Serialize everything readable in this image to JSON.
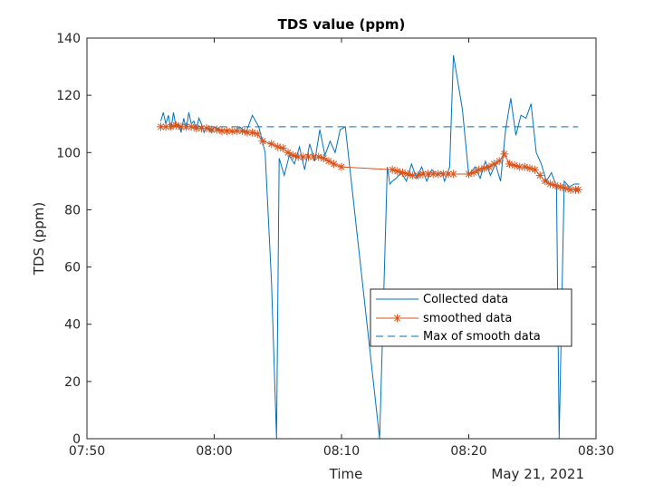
{
  "chart_data": {
    "type": "line",
    "title": "TDS value (ppm)",
    "xlabel": "Time",
    "ylabel": "TDS (ppm)",
    "date_label": "May 21, 2021",
    "xlim": [
      "07:50",
      "08:30"
    ],
    "ylim": [
      0,
      140
    ],
    "x_ticks": [
      "07:50",
      "08:00",
      "08:10",
      "08:20",
      "08:30"
    ],
    "y_ticks": [
      "0",
      "20",
      "40",
      "60",
      "80",
      "100",
      "120",
      "140"
    ],
    "grid": false,
    "legend_position": "right",
    "colors": {
      "collected": "#0072BD",
      "smoothed": "#D95319",
      "max": "#0072BD"
    },
    "series": [
      {
        "name": "Collected data",
        "style": "solid",
        "x": [
          "07:55:48",
          "07:56:00",
          "07:56:12",
          "07:56:24",
          "07:56:36",
          "07:56:48",
          "07:57:00",
          "07:57:12",
          "07:57:24",
          "07:57:36",
          "07:57:48",
          "07:58:00",
          "07:58:12",
          "07:58:24",
          "07:58:36",
          "07:58:48",
          "07:59:00",
          "07:59:12",
          "07:59:24",
          "07:59:36",
          "07:59:48",
          "08:00:00",
          "08:00:30",
          "08:01:00",
          "08:01:30",
          "08:02:00",
          "08:02:30",
          "08:03:00",
          "08:03:30",
          "08:04:00",
          "08:04:30",
          "08:04:54",
          "08:05:06",
          "08:05:30",
          "08:05:54",
          "08:06:18",
          "08:06:42",
          "08:07:06",
          "08:07:30",
          "08:07:54",
          "08:08:18",
          "08:08:42",
          "08:09:06",
          "08:09:30",
          "08:09:54",
          "08:10:18",
          "08:13:00",
          "08:13:36",
          "08:13:48",
          "08:14:00",
          "08:14:18",
          "08:14:42",
          "08:15:06",
          "08:15:30",
          "08:15:54",
          "08:16:18",
          "08:16:42",
          "08:17:06",
          "08:17:30",
          "08:17:54",
          "08:18:06",
          "08:18:30",
          "08:18:48",
          "08:19:30",
          "08:20:00",
          "08:20:30",
          "08:20:54",
          "08:21:18",
          "08:21:42",
          "08:22:06",
          "08:22:30",
          "08:22:54",
          "08:23:18",
          "08:23:42",
          "08:24:06",
          "08:24:30",
          "08:24:54",
          "08:25:18",
          "08:25:42",
          "08:26:06",
          "08:26:30",
          "08:26:54",
          "08:27:06",
          "08:27:18",
          "08:27:30",
          "08:27:54",
          "08:28:18",
          "08:28:42"
        ],
        "y": [
          111,
          114,
          110,
          113,
          108,
          114,
          109,
          110,
          107,
          112,
          108,
          114,
          110,
          111,
          108,
          112,
          110,
          107,
          109,
          108,
          107,
          109,
          108,
          108,
          107,
          109,
          107,
          113,
          109,
          100,
          55,
          0,
          98,
          92,
          99,
          96,
          102,
          94,
          103,
          97,
          108,
          99,
          104,
          100,
          108,
          109,
          0,
          95,
          89,
          90,
          91,
          93,
          90,
          96,
          91,
          95,
          90,
          94,
          92,
          93,
          90,
          95,
          134,
          115,
          92,
          95,
          91,
          97,
          92,
          96,
          90,
          108,
          119,
          106,
          113,
          112,
          117,
          100,
          96,
          90,
          93,
          88,
          0,
          45,
          90,
          88,
          89,
          89
        ]
      },
      {
        "name": "smoothed data",
        "style": "solid-star-markers",
        "x": [
          "07:55:48",
          "07:56:12",
          "07:56:36",
          "07:57:00",
          "07:57:24",
          "07:57:48",
          "07:58:12",
          "07:58:36",
          "07:59:00",
          "07:59:24",
          "07:59:48",
          "08:00:12",
          "08:00:36",
          "08:01:00",
          "08:01:24",
          "08:01:48",
          "08:02:12",
          "08:02:36",
          "08:03:00",
          "08:03:24",
          "08:03:48",
          "08:04:30",
          "08:05:00",
          "08:05:24",
          "08:05:48",
          "08:06:12",
          "08:06:36",
          "08:07:00",
          "08:07:24",
          "08:07:48",
          "08:08:12",
          "08:08:36",
          "08:09:00",
          "08:09:24",
          "08:10:00",
          "08:14:00",
          "08:14:24",
          "08:14:48",
          "08:15:12",
          "08:15:36",
          "08:16:00",
          "08:16:24",
          "08:16:48",
          "08:17:12",
          "08:17:36",
          "08:18:00",
          "08:18:24",
          "08:18:48",
          "08:20:00",
          "08:20:24",
          "08:20:48",
          "08:21:12",
          "08:21:36",
          "08:22:00",
          "08:22:24",
          "08:22:48",
          "08:23:12",
          "08:23:36",
          "08:24:00",
          "08:24:24",
          "08:24:48",
          "08:25:12",
          "08:25:36",
          "08:26:00",
          "08:26:24",
          "08:26:48",
          "08:27:12",
          "08:27:36",
          "08:28:00",
          "08:28:24",
          "08:28:36"
        ],
        "y": [
          109,
          109,
          109,
          109.5,
          109,
          109,
          109,
          108.5,
          108.5,
          108.5,
          108,
          108,
          107.5,
          107.5,
          107.5,
          107.5,
          107.5,
          107,
          107,
          106.5,
          104,
          103,
          102,
          101.5,
          100,
          99,
          98.5,
          98.5,
          98.5,
          98.5,
          98.5,
          98,
          97,
          96,
          95,
          94,
          93.5,
          93,
          92.5,
          92,
          92,
          92.5,
          92.5,
          92.5,
          92.5,
          92.5,
          92.5,
          92.5,
          92.5,
          93,
          94,
          94.5,
          95,
          96,
          97,
          99.5,
          96,
          95.5,
          95,
          95,
          94.5,
          94,
          92,
          90,
          89,
          88.5,
          88,
          87.5,
          87,
          87,
          87
        ]
      },
      {
        "name": "Max of smooth data",
        "style": "dashed",
        "x": [
          "07:55:48",
          "08:28:36"
        ],
        "y": [
          109,
          109
        ]
      }
    ]
  }
}
